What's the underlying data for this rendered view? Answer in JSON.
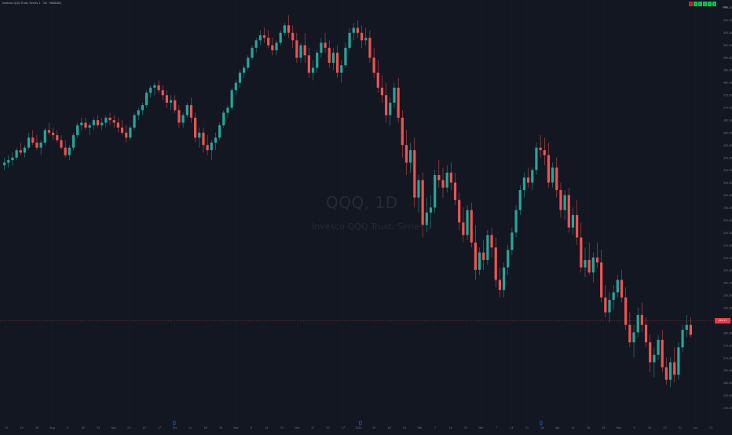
{
  "header": {
    "legend_text": "Invesco QQQ Trust, Series 1 · 1D · NASDAQ",
    "usd_label": "USD",
    "indicator_boxes": [
      {
        "label": "1",
        "color": "#c62828"
      },
      {
        "label": "1",
        "color": "#00c853"
      },
      {
        "label": "1",
        "color": "#00c853"
      },
      {
        "label": "1",
        "color": "#00c853"
      },
      {
        "label": "1",
        "color": "#00c853"
      },
      {
        "label": "1",
        "color": "#00c853"
      }
    ]
  },
  "watermark": {
    "symbol": "QQQ, 1D",
    "description": "Invesco QQQ Trust, Series 1"
  },
  "colors": {
    "background": "#131722",
    "up": "#26a69a",
    "down": "#ef5350",
    "axis_text": "#787b86",
    "price_line": "#ef5350",
    "marker": "#2962ff"
  },
  "price_axis": {
    "labels": [
      "410.00",
      "405.00",
      "400.00",
      "395.00",
      "390.00",
      "385.00",
      "380.00",
      "375.00",
      "370.00",
      "365.00",
      "360.00",
      "355.00",
      "350.00",
      "345.00",
      "340.00",
      "335.00",
      "330.00",
      "325.00",
      "320.00",
      "315.00",
      "310.00",
      "305.00",
      "300.00",
      "295.00",
      "290.00",
      "285.00",
      "280.00",
      "275.00",
      "270.00",
      "265.00",
      "260.00",
      "255.00",
      "250.00"
    ],
    "current_price": "280.13"
  },
  "time_axis": {
    "labels": [
      "12",
      "19",
      "26",
      "Aug",
      "9",
      "16",
      "23",
      "Sep",
      "13",
      "20",
      "27",
      "Oct",
      "11",
      "18",
      "25",
      "Nov",
      "8",
      "15",
      "22",
      "Dec",
      "13",
      "20",
      "27",
      "2022",
      "10",
      "18",
      "24",
      "Feb",
      "7",
      "14",
      "22",
      "Mar",
      "7",
      "14",
      "21",
      "28",
      "Apr",
      "11",
      "18",
      "25",
      "May",
      "9",
      "16",
      "23",
      "31",
      "Jun",
      "13"
    ]
  },
  "chart_data": {
    "type": "candlestick",
    "title": "QQQ, 1D",
    "subtitle": "Invesco QQQ Trust, Series 1",
    "ylim": [
      250,
      412
    ],
    "candles": [
      [
        349,
        352,
        347,
        350
      ],
      [
        350,
        353,
        348,
        351
      ],
      [
        351,
        354,
        349,
        352
      ],
      [
        352,
        356,
        351,
        355
      ],
      [
        355,
        358,
        353,
        354
      ],
      [
        354,
        357,
        352,
        356
      ],
      [
        356,
        362,
        355,
        360
      ],
      [
        360,
        363,
        357,
        358
      ],
      [
        358,
        361,
        355,
        356
      ],
      [
        356,
        359,
        353,
        358
      ],
      [
        358,
        364,
        357,
        363
      ],
      [
        363,
        366,
        361,
        362
      ],
      [
        362,
        364,
        359,
        361
      ],
      [
        361,
        363,
        358,
        359
      ],
      [
        359,
        361,
        355,
        356
      ],
      [
        356,
        359,
        352,
        353
      ],
      [
        353,
        357,
        351,
        356
      ],
      [
        356,
        362,
        355,
        361
      ],
      [
        361,
        366,
        360,
        365
      ],
      [
        365,
        368,
        363,
        366
      ],
      [
        366,
        368,
        363,
        364
      ],
      [
        364,
        366,
        361,
        365
      ],
      [
        365,
        368,
        363,
        367
      ],
      [
        367,
        369,
        364,
        365
      ],
      [
        365,
        368,
        363,
        366
      ],
      [
        366,
        369,
        364,
        368
      ],
      [
        368,
        370,
        365,
        367
      ],
      [
        367,
        369,
        364,
        366
      ],
      [
        366,
        368,
        362,
        364
      ],
      [
        364,
        367,
        361,
        362
      ],
      [
        362,
        365,
        358,
        360
      ],
      [
        360,
        365,
        359,
        364
      ],
      [
        364,
        370,
        363,
        369
      ],
      [
        369,
        372,
        367,
        371
      ],
      [
        371,
        374,
        369,
        373
      ],
      [
        373,
        379,
        372,
        378
      ],
      [
        378,
        381,
        376,
        380
      ],
      [
        380,
        382,
        377,
        381
      ],
      [
        381,
        383,
        378,
        379
      ],
      [
        379,
        381,
        375,
        377
      ],
      [
        377,
        379,
        372,
        374
      ],
      [
        374,
        377,
        371,
        375
      ],
      [
        375,
        377,
        370,
        371
      ],
      [
        371,
        373,
        364,
        366
      ],
      [
        366,
        370,
        364,
        369
      ],
      [
        369,
        374,
        368,
        373
      ],
      [
        373,
        376,
        366,
        368
      ],
      [
        368,
        370,
        358,
        360
      ],
      [
        360,
        364,
        356,
        362
      ],
      [
        362,
        364,
        354,
        357
      ],
      [
        357,
        361,
        353,
        355
      ],
      [
        355,
        359,
        351,
        358
      ],
      [
        358,
        362,
        355,
        360
      ],
      [
        360,
        366,
        359,
        365
      ],
      [
        365,
        371,
        364,
        370
      ],
      [
        370,
        373,
        368,
        372
      ],
      [
        372,
        380,
        371,
        379
      ],
      [
        379,
        383,
        377,
        382
      ],
      [
        382,
        387,
        380,
        386
      ],
      [
        386,
        389,
        384,
        388
      ],
      [
        388,
        393,
        387,
        392
      ],
      [
        392,
        397,
        391,
        396
      ],
      [
        396,
        400,
        394,
        399
      ],
      [
        399,
        403,
        397,
        401
      ],
      [
        401,
        404,
        398,
        400
      ],
      [
        400,
        403,
        396,
        397
      ],
      [
        397,
        400,
        393,
        395
      ],
      [
        395,
        399,
        393,
        398
      ],
      [
        398,
        403,
        397,
        402
      ],
      [
        402,
        406,
        401,
        405
      ],
      [
        405,
        409,
        400,
        402
      ],
      [
        402,
        405,
        396,
        399
      ],
      [
        399,
        402,
        390,
        392
      ],
      [
        392,
        398,
        390,
        397
      ],
      [
        397,
        402,
        390,
        393
      ],
      [
        393,
        396,
        384,
        386
      ],
      [
        386,
        391,
        383,
        388
      ],
      [
        388,
        395,
        386,
        394
      ],
      [
        394,
        400,
        392,
        398
      ],
      [
        398,
        402,
        394,
        396
      ],
      [
        396,
        399,
        388,
        390
      ],
      [
        390,
        396,
        387,
        394
      ],
      [
        394,
        397,
        384,
        386
      ],
      [
        386,
        391,
        382,
        389
      ],
      [
        389,
        398,
        388,
        396
      ],
      [
        396,
        404,
        395,
        402
      ],
      [
        402,
        406,
        399,
        404
      ],
      [
        404,
        407,
        400,
        402
      ],
      [
        402,
        405,
        396,
        399
      ],
      [
        399,
        404,
        397,
        400
      ],
      [
        400,
        403,
        390,
        392
      ],
      [
        392,
        396,
        384,
        386
      ],
      [
        386,
        391,
        378,
        380
      ],
      [
        380,
        385,
        374,
        377
      ],
      [
        377,
        382,
        366,
        369
      ],
      [
        369,
        376,
        365,
        374
      ],
      [
        374,
        382,
        372,
        380
      ],
      [
        380,
        384,
        366,
        368
      ],
      [
        368,
        371,
        352,
        357
      ],
      [
        357,
        363,
        345,
        350
      ],
      [
        350,
        358,
        346,
        355
      ],
      [
        355,
        360,
        332,
        336
      ],
      [
        336,
        345,
        330,
        343
      ],
      [
        343,
        346,
        320,
        325
      ],
      [
        325,
        336,
        322,
        330
      ],
      [
        330,
        337,
        324,
        332
      ],
      [
        332,
        347,
        330,
        345
      ],
      [
        345,
        351,
        340,
        343
      ],
      [
        343,
        348,
        336,
        340
      ],
      [
        340,
        349,
        338,
        346
      ],
      [
        346,
        350,
        339,
        342
      ],
      [
        342,
        346,
        333,
        335
      ],
      [
        335,
        338,
        323,
        326
      ],
      [
        326,
        332,
        318,
        321
      ],
      [
        321,
        333,
        319,
        331
      ],
      [
        331,
        334,
        316,
        318
      ],
      [
        318,
        325,
        303,
        307
      ],
      [
        307,
        316,
        305,
        314
      ],
      [
        314,
        319,
        307,
        311
      ],
      [
        311,
        323,
        309,
        321
      ],
      [
        321,
        324,
        312,
        316
      ],
      [
        316,
        320,
        300,
        303
      ],
      [
        303,
        308,
        296,
        299
      ],
      [
        299,
        310,
        296,
        308
      ],
      [
        308,
        317,
        305,
        315
      ],
      [
        315,
        324,
        313,
        322
      ],
      [
        322,
        333,
        320,
        331
      ],
      [
        331,
        341,
        329,
        339
      ],
      [
        339,
        346,
        336,
        344
      ],
      [
        344,
        348,
        340,
        342
      ],
      [
        342,
        348,
        339,
        347
      ],
      [
        347,
        358,
        345,
        356
      ],
      [
        356,
        361,
        352,
        355
      ],
      [
        355,
        360,
        349,
        353
      ],
      [
        353,
        358,
        340,
        342
      ],
      [
        342,
        350,
        340,
        348
      ],
      [
        348,
        352,
        336,
        339
      ],
      [
        339,
        342,
        328,
        331
      ],
      [
        331,
        339,
        327,
        337
      ],
      [
        337,
        340,
        322,
        324
      ],
      [
        324,
        332,
        321,
        329
      ],
      [
        329,
        335,
        317,
        320
      ],
      [
        320,
        326,
        306,
        308
      ],
      [
        308,
        316,
        304,
        311
      ],
      [
        311,
        318,
        305,
        306
      ],
      [
        306,
        314,
        302,
        312
      ],
      [
        312,
        318,
        308,
        310
      ],
      [
        310,
        315,
        294,
        296
      ],
      [
        296,
        301,
        288,
        290
      ],
      [
        290,
        298,
        286,
        295
      ],
      [
        295,
        301,
        291,
        298
      ],
      [
        298,
        305,
        296,
        303
      ],
      [
        303,
        307,
        294,
        296
      ],
      [
        296,
        300,
        283,
        285
      ],
      [
        285,
        290,
        276,
        278
      ],
      [
        278,
        285,
        272,
        282
      ],
      [
        282,
        292,
        280,
        289
      ],
      [
        289,
        294,
        282,
        285
      ],
      [
        285,
        288,
        276,
        278
      ],
      [
        278,
        281,
        266,
        270
      ],
      [
        270,
        276,
        264,
        273
      ],
      [
        273,
        281,
        271,
        279
      ],
      [
        279,
        283,
        266,
        268
      ],
      [
        268,
        272,
        261,
        263
      ],
      [
        263,
        272,
        260,
        270
      ],
      [
        270,
        276,
        262,
        265
      ],
      [
        265,
        278,
        263,
        276
      ],
      [
        276,
        285,
        274,
        283
      ],
      [
        283,
        289,
        280,
        285
      ],
      [
        285,
        288,
        280,
        281
      ]
    ]
  }
}
